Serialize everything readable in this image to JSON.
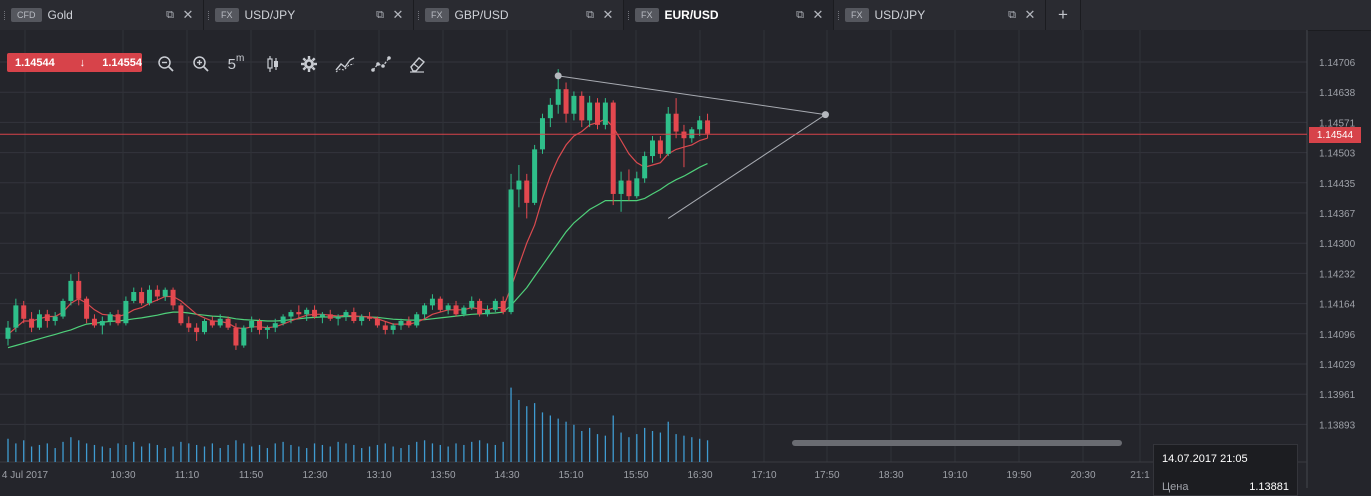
{
  "tabs": [
    {
      "tag": "CFD",
      "name": "Gold"
    },
    {
      "tag": "FX",
      "name": "USD/JPY"
    },
    {
      "tag": "FX",
      "name": "GBP/USD"
    },
    {
      "tag": "FX",
      "name": "EUR/USD"
    },
    {
      "tag": "FX",
      "name": "USD/JPY"
    }
  ],
  "active_tab": "EUR/USD",
  "add_tab_label": "+",
  "price_badge": {
    "bid": "1.14544",
    "arrow": "↓",
    "ask": "1.14554"
  },
  "toolbar": {
    "icons": [
      "zoom-out-icon",
      "zoom-in-icon",
      "timeframe-icon",
      "candlestick-icon",
      "settings-icon",
      "indicators-icon",
      "drawing-icon",
      "eraser-icon"
    ],
    "timeframe_label": "5",
    "timeframe_unit": "m"
  },
  "last_price_label": "1.14544",
  "tooltip": {
    "datetime": "14.07.2017 21:05",
    "label": "Цена",
    "value": "1.13881"
  },
  "colors": {
    "background": "#24252b",
    "up": "#2fbf8a",
    "down": "#e4484f",
    "ma_fast": "#d94a4f",
    "ma_slow": "#4fd07a",
    "volume": "#3f9bd1",
    "price_line": "#d7434a"
  },
  "chart_data": {
    "type": "candlestick",
    "symbol": "EUR/USD",
    "x_ticks": [
      "4 Jul 2017",
      "10:30",
      "11:10",
      "11:50",
      "12:30",
      "13:10",
      "13:50",
      "14:30",
      "15:10",
      "15:50",
      "16:30",
      "17:10",
      "17:50",
      "18:30",
      "19:10",
      "19:50",
      "20:30",
      "21:1"
    ],
    "y_ticks": [
      "1.14706",
      "1.14638",
      "1.14571",
      "1.14503",
      "1.14435",
      "1.14367",
      "1.14300",
      "1.14232",
      "1.14164",
      "1.14096",
      "1.14029",
      "1.13961",
      "1.13893"
    ],
    "ylim": [
      1.13863,
      1.1474
    ],
    "last_price": 1.14544,
    "candles": [
      [
        1.14085,
        1.14125,
        1.1407,
        1.1411
      ],
      [
        1.1411,
        1.14175,
        1.141,
        1.1416
      ],
      [
        1.1416,
        1.1417,
        1.1412,
        1.1413
      ],
      [
        1.1413,
        1.14145,
        1.141,
        1.1411
      ],
      [
        1.1411,
        1.1415,
        1.14105,
        1.1414
      ],
      [
        1.1414,
        1.1415,
        1.1411,
        1.14125
      ],
      [
        1.14125,
        1.14145,
        1.14115,
        1.14135
      ],
      [
        1.14135,
        1.14175,
        1.1413,
        1.1417
      ],
      [
        1.1417,
        1.1423,
        1.1416,
        1.14215
      ],
      [
        1.14215,
        1.14235,
        1.1416,
        1.14175
      ],
      [
        1.14175,
        1.1418,
        1.1412,
        1.1413
      ],
      [
        1.1413,
        1.1414,
        1.1411,
        1.14115
      ],
      [
        1.14115,
        1.14135,
        1.14095,
        1.14125
      ],
      [
        1.14125,
        1.14145,
        1.14115,
        1.1414
      ],
      [
        1.1414,
        1.1415,
        1.14115,
        1.1412
      ],
      [
        1.1412,
        1.1418,
        1.14115,
        1.1417
      ],
      [
        1.1417,
        1.142,
        1.14165,
        1.1419
      ],
      [
        1.1419,
        1.142,
        1.1416,
        1.14165
      ],
      [
        1.14165,
        1.14205,
        1.1416,
        1.14195
      ],
      [
        1.14195,
        1.14205,
        1.1417,
        1.1418
      ],
      [
        1.1418,
        1.142,
        1.1417,
        1.14195
      ],
      [
        1.14195,
        1.142,
        1.1415,
        1.1416
      ],
      [
        1.1416,
        1.14165,
        1.14115,
        1.1412
      ],
      [
        1.1412,
        1.14135,
        1.141,
        1.1411
      ],
      [
        1.1411,
        1.1412,
        1.1408,
        1.141
      ],
      [
        1.141,
        1.1413,
        1.14095,
        1.14125
      ],
      [
        1.14125,
        1.14135,
        1.1411,
        1.14115
      ],
      [
        1.14115,
        1.1414,
        1.1411,
        1.1413
      ],
      [
        1.1413,
        1.14135,
        1.14105,
        1.1411
      ],
      [
        1.1411,
        1.1412,
        1.1406,
        1.1407
      ],
      [
        1.1407,
        1.14115,
        1.14065,
        1.1411
      ],
      [
        1.1411,
        1.14135,
        1.141,
        1.14125
      ],
      [
        1.14125,
        1.1413,
        1.14095,
        1.14105
      ],
      [
        1.14105,
        1.14115,
        1.14085,
        1.1411
      ],
      [
        1.1411,
        1.1413,
        1.141,
        1.1412
      ],
      [
        1.1412,
        1.1414,
        1.14115,
        1.14135
      ],
      [
        1.14135,
        1.1415,
        1.1412,
        1.14145
      ],
      [
        1.14145,
        1.1416,
        1.1413,
        1.1414
      ],
      [
        1.1414,
        1.14155,
        1.14125,
        1.1415
      ],
      [
        1.1415,
        1.1416,
        1.1413,
        1.14135
      ],
      [
        1.14135,
        1.14145,
        1.1412,
        1.1414
      ],
      [
        1.1414,
        1.1415,
        1.14125,
        1.1413
      ],
      [
        1.1413,
        1.1414,
        1.14115,
        1.14135
      ],
      [
        1.14135,
        1.1415,
        1.14125,
        1.14145
      ],
      [
        1.14145,
        1.14155,
        1.1412,
        1.14125
      ],
      [
        1.14125,
        1.1414,
        1.14115,
        1.14135
      ],
      [
        1.14135,
        1.14145,
        1.14125,
        1.1413
      ],
      [
        1.1413,
        1.14135,
        1.1411,
        1.14115
      ],
      [
        1.14115,
        1.14125,
        1.14095,
        1.14105
      ],
      [
        1.14105,
        1.1412,
        1.14095,
        1.14115
      ],
      [
        1.14115,
        1.1413,
        1.14105,
        1.14125
      ],
      [
        1.14125,
        1.14135,
        1.1411,
        1.14115
      ],
      [
        1.14115,
        1.14145,
        1.1411,
        1.1414
      ],
      [
        1.1414,
        1.14165,
        1.1413,
        1.1416
      ],
      [
        1.1416,
        1.14185,
        1.1415,
        1.14175
      ],
      [
        1.14175,
        1.1418,
        1.14145,
        1.1415
      ],
      [
        1.1415,
        1.14165,
        1.1414,
        1.1416
      ],
      [
        1.1416,
        1.1417,
        1.14135,
        1.1414
      ],
      [
        1.1414,
        1.1416,
        1.14135,
        1.14155
      ],
      [
        1.14155,
        1.1418,
        1.1415,
        1.1417
      ],
      [
        1.1417,
        1.14175,
        1.14135,
        1.1414
      ],
      [
        1.1414,
        1.1416,
        1.14135,
        1.1415
      ],
      [
        1.1415,
        1.14175,
        1.14145,
        1.1417
      ],
      [
        1.1417,
        1.1418,
        1.1414,
        1.14145
      ],
      [
        1.14145,
        1.14455,
        1.1414,
        1.1442
      ],
      [
        1.1442,
        1.14475,
        1.1438,
        1.1444
      ],
      [
        1.1444,
        1.14455,
        1.14355,
        1.1439
      ],
      [
        1.1439,
        1.1452,
        1.14385,
        1.1451
      ],
      [
        1.1451,
        1.1459,
        1.145,
        1.1458
      ],
      [
        1.1458,
        1.14625,
        1.1456,
        1.1461
      ],
      [
        1.1461,
        1.1469,
        1.1459,
        1.14645
      ],
      [
        1.14645,
        1.1466,
        1.1457,
        1.1459
      ],
      [
        1.1459,
        1.1464,
        1.14575,
        1.1463
      ],
      [
        1.1463,
        1.1464,
        1.1456,
        1.14575
      ],
      [
        1.14575,
        1.1463,
        1.1456,
        1.14615
      ],
      [
        1.14615,
        1.14625,
        1.14555,
        1.14565
      ],
      [
        1.14565,
        1.14625,
        1.14555,
        1.14615
      ],
      [
        1.14615,
        1.1462,
        1.14385,
        1.1441
      ],
      [
        1.1441,
        1.1446,
        1.1437,
        1.1444
      ],
      [
        1.1444,
        1.14465,
        1.14395,
        1.14405
      ],
      [
        1.14405,
        1.1446,
        1.144,
        1.14445
      ],
      [
        1.14445,
        1.14505,
        1.14435,
        1.14495
      ],
      [
        1.14495,
        1.1454,
        1.1448,
        1.1453
      ],
      [
        1.1453,
        1.1454,
        1.1449,
        1.145
      ],
      [
        1.145,
        1.14605,
        1.14495,
        1.1459
      ],
      [
        1.1459,
        1.14625,
        1.14535,
        1.1455
      ],
      [
        1.1455,
        1.14565,
        1.1447,
        1.14535
      ],
      [
        1.14535,
        1.1456,
        1.14525,
        1.14555
      ],
      [
        1.14555,
        1.14585,
        1.1454,
        1.14575
      ],
      [
        1.14575,
        1.1459,
        1.14535,
        1.14545
      ]
    ],
    "ma_fast": [
      1.14095,
      1.1411,
      1.14125,
      1.14125,
      1.1413,
      1.14135,
      1.14135,
      1.14145,
      1.14165,
      1.14175,
      1.14165,
      1.1415,
      1.1414,
      1.14138,
      1.14135,
      1.1414,
      1.1415,
      1.14155,
      1.14165,
      1.14172,
      1.1418,
      1.1418,
      1.1417,
      1.14155,
      1.1414,
      1.14132,
      1.14125,
      1.14124,
      1.1412,
      1.1411,
      1.14108,
      1.14112,
      1.14112,
      1.1411,
      1.14112,
      1.14118,
      1.14125,
      1.14132,
      1.14138,
      1.1414,
      1.1414,
      1.14138,
      1.14136,
      1.14138,
      1.14136,
      1.14135,
      1.14134,
      1.1413,
      1.14124,
      1.14118,
      1.14118,
      1.14118,
      1.14122,
      1.1413,
      1.1414,
      1.14145,
      1.1415,
      1.1415,
      1.1415,
      1.14155,
      1.14152,
      1.1415,
      1.14155,
      1.14155,
      1.142,
      1.1425,
      1.143,
      1.1434,
      1.144,
      1.1445,
      1.1449,
      1.1452,
      1.1454,
      1.1455,
      1.14565,
      1.1457,
      1.14578,
      1.1456,
      1.1453,
      1.145,
      1.1448,
      1.1447,
      1.14475,
      1.1448,
      1.145,
      1.1451,
      1.14515,
      1.1452,
      1.1453,
      1.14535
    ],
    "ma_slow": [
      1.14065,
      1.1407,
      1.14075,
      1.1408,
      1.14085,
      1.1409,
      1.14095,
      1.141,
      1.14105,
      1.14112,
      1.14118,
      1.1412,
      1.14122,
      1.14124,
      1.14125,
      1.14127,
      1.1413,
      1.14132,
      1.14135,
      1.14138,
      1.14142,
      1.14145,
      1.14145,
      1.14143,
      1.1414,
      1.14138,
      1.14136,
      1.14135,
      1.14133,
      1.1413,
      1.14128,
      1.14127,
      1.14126,
      1.14125,
      1.14125,
      1.14126,
      1.14128,
      1.1413,
      1.14132,
      1.14133,
      1.14134,
      1.14134,
      1.14134,
      1.14135,
      1.14135,
      1.14135,
      1.14134,
      1.14133,
      1.14131,
      1.14129,
      1.14128,
      1.14127,
      1.14127,
      1.14128,
      1.1413,
      1.14132,
      1.14134,
      1.14136,
      1.14138,
      1.1414,
      1.14141,
      1.14142,
      1.14143,
      1.14145,
      1.1416,
      1.1418,
      1.142,
      1.14225,
      1.1425,
      1.14275,
      1.143,
      1.14325,
      1.14345,
      1.1436,
      1.14375,
      1.14385,
      1.14395,
      1.14395,
      1.14395,
      1.14395,
      1.14395,
      1.144,
      1.1441,
      1.1442,
      1.14432,
      1.14442,
      1.1445,
      1.1446,
      1.1447,
      1.14478
    ],
    "volume": [
      15,
      12,
      14,
      10,
      11,
      12,
      9,
      13,
      16,
      14,
      12,
      11,
      10,
      9,
      12,
      11,
      13,
      10,
      12,
      11,
      9,
      10,
      13,
      12,
      11,
      10,
      12,
      9,
      11,
      14,
      12,
      10,
      11,
      9,
      12,
      13,
      11,
      10,
      9,
      12,
      11,
      10,
      13,
      12,
      11,
      9,
      10,
      11,
      12,
      10,
      9,
      11,
      13,
      14,
      12,
      11,
      10,
      12,
      11,
      13,
      14,
      12,
      11,
      13,
      48,
      40,
      36,
      38,
      32,
      30,
      28,
      26,
      24,
      20,
      22,
      18,
      17,
      30,
      19,
      16,
      18,
      22,
      20,
      19,
      26,
      18,
      17,
      16,
      15,
      14
    ],
    "trendlines": [
      {
        "from": [
          70,
          1.14675
        ],
        "to": [
          104,
          1.14588
        ]
      },
      {
        "from": [
          84,
          1.14355
        ],
        "to": [
          104,
          1.14588
        ]
      }
    ]
  }
}
